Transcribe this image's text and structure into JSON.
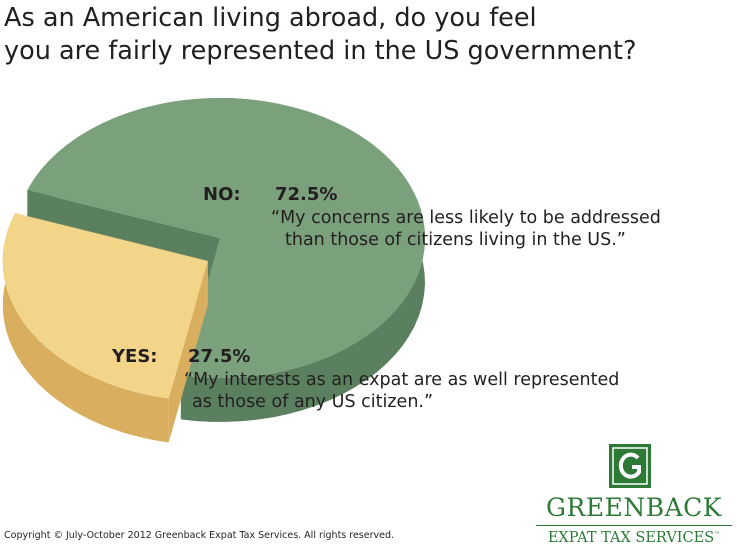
{
  "title_lines": [
    "As an American living abroad, do you feel",
    "you are fairly represented in the US government?"
  ],
  "chart_data": {
    "type": "pie",
    "title": "As an American living abroad, do you feel you are fairly represented in the US government?",
    "slices": [
      {
        "label": "NO:",
        "value": 72.5,
        "value_text": "72.5%",
        "quote_lines": [
          "“My concerns are less likely to be addressed",
          "than those of citizens living in the US.”"
        ],
        "color": "#7ba07c",
        "side_color": "#5b8060"
      },
      {
        "label": "YES:",
        "value": 27.5,
        "value_text": "27.5%",
        "quote_lines": [
          "“My interests as an expat are as well represented",
          "as those of any US citizen.”"
        ],
        "color": "#f3d589",
        "side_color": "#d9ae5e"
      }
    ],
    "style": "3d-exploded"
  },
  "footer": {
    "copyright": "Copyright © July-October 2012 Greenback Expat Tax Services. All rights reserved."
  },
  "logo": {
    "name": "GREENBACK",
    "subtitle": "EXPAT TAX SERVICES",
    "trademark": "™",
    "color": "#2c7a35"
  }
}
